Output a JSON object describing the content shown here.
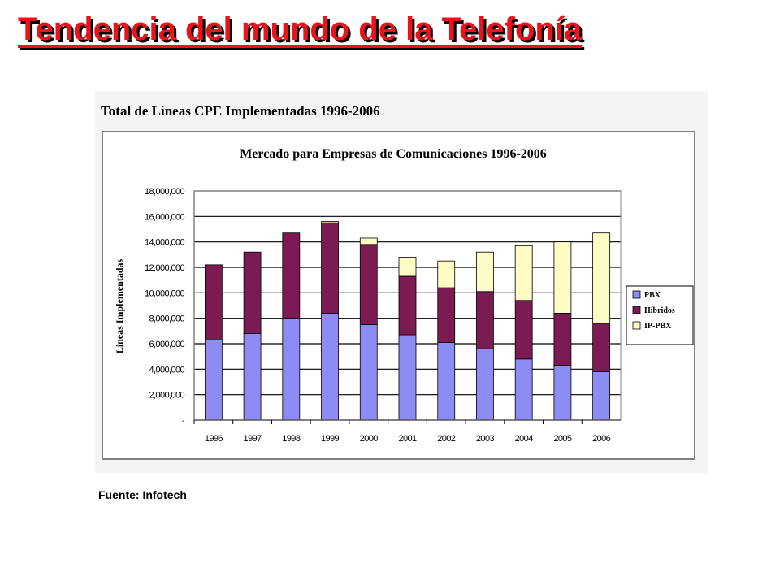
{
  "slide": {
    "title": "Tendencia del mundo de la Telefonía",
    "source": "Fuente: Infotech"
  },
  "colors": {
    "title_text": "#e8141c",
    "title_shadow": "#000000",
    "pbx": "#8c8cf4",
    "hibridos": "#7c1a54",
    "ip_pbx": "#fcfcc4"
  },
  "chart_data": {
    "type": "bar",
    "stacked": true,
    "header": "Total de Líneas CPE Implementadas 1996-2006",
    "title": "Mercado para Empresas de Comunicaciones 1996-2006",
    "xlabel": "",
    "ylabel": "Lineas Implementadas",
    "ylim": [
      0,
      18000000
    ],
    "yticks": [
      {
        "value": 0,
        "label": "-"
      },
      {
        "value": 2000000,
        "label": "2,000,000"
      },
      {
        "value": 4000000,
        "label": "4,000,000"
      },
      {
        "value": 6000000,
        "label": "6,000,000"
      },
      {
        "value": 8000000,
        "label": "8,000,000"
      },
      {
        "value": 10000000,
        "label": "10,000,000"
      },
      {
        "value": 12000000,
        "label": "12,000,000"
      },
      {
        "value": 14000000,
        "label": "14,000,000"
      },
      {
        "value": 16000000,
        "label": "16,000,000"
      },
      {
        "value": 18000000,
        "label": "18,000,000"
      }
    ],
    "grid": true,
    "legend_position": "right",
    "categories": [
      "1996",
      "1997",
      "1998",
      "1999",
      "2000",
      "2001",
      "2002",
      "2003",
      "2004",
      "2005",
      "2006"
    ],
    "series": [
      {
        "name": "PBX",
        "color": "#8c8cf4",
        "values": [
          6300000,
          6800000,
          8000000,
          8400000,
          7500000,
          6700000,
          6100000,
          5600000,
          4800000,
          4300000,
          3800000
        ]
      },
      {
        "name": "Híbridos",
        "color": "#7c1a54",
        "values": [
          5900000,
          6400000,
          6700000,
          7100000,
          6300000,
          4600000,
          4300000,
          4500000,
          4600000,
          4100000,
          3800000
        ]
      },
      {
        "name": "IP-PBX",
        "color": "#fcfcc4",
        "values": [
          0,
          0,
          0,
          100000,
          500000,
          1500000,
          2100000,
          3100000,
          4300000,
          5600000,
          7100000
        ]
      }
    ]
  }
}
